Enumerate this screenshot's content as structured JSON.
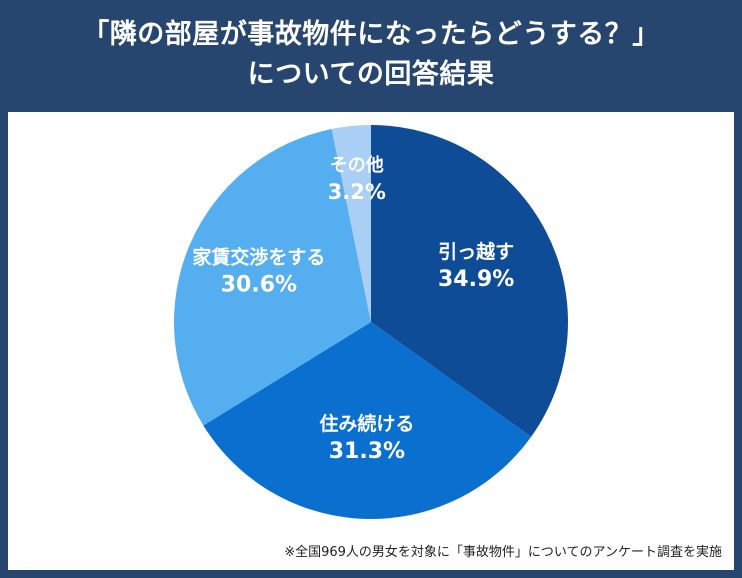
{
  "title": {
    "line1": "「隣の部屋が事故物件になったらどうする？」",
    "line2": "についての回答結果"
  },
  "footnote": "※全国969人の男女を対象に「事故物件」についてのアンケート調査を実施",
  "colors": {
    "header_bg": "#27466f",
    "panel_bg": "#ffffff",
    "slice_text": "#ffffff"
  },
  "chart_data": {
    "type": "pie",
    "title": "「隣の部屋が事故物件になったらどうする？」についての回答結果",
    "start_angle_deg": 0,
    "direction": "clockwise",
    "slices": [
      {
        "label": "引っ越す",
        "value": 34.9,
        "value_label": "34.9%",
        "color": "#0f4c97"
      },
      {
        "label": "住み続ける",
        "value": 31.3,
        "value_label": "31.3%",
        "color": "#0a6fcf"
      },
      {
        "label": "家賃交渉をする",
        "value": 30.6,
        "value_label": "30.6%",
        "color": "#55aeef"
      },
      {
        "label": "その他",
        "value": 3.2,
        "value_label": "3.2%",
        "color": "#a9cff5"
      }
    ]
  }
}
